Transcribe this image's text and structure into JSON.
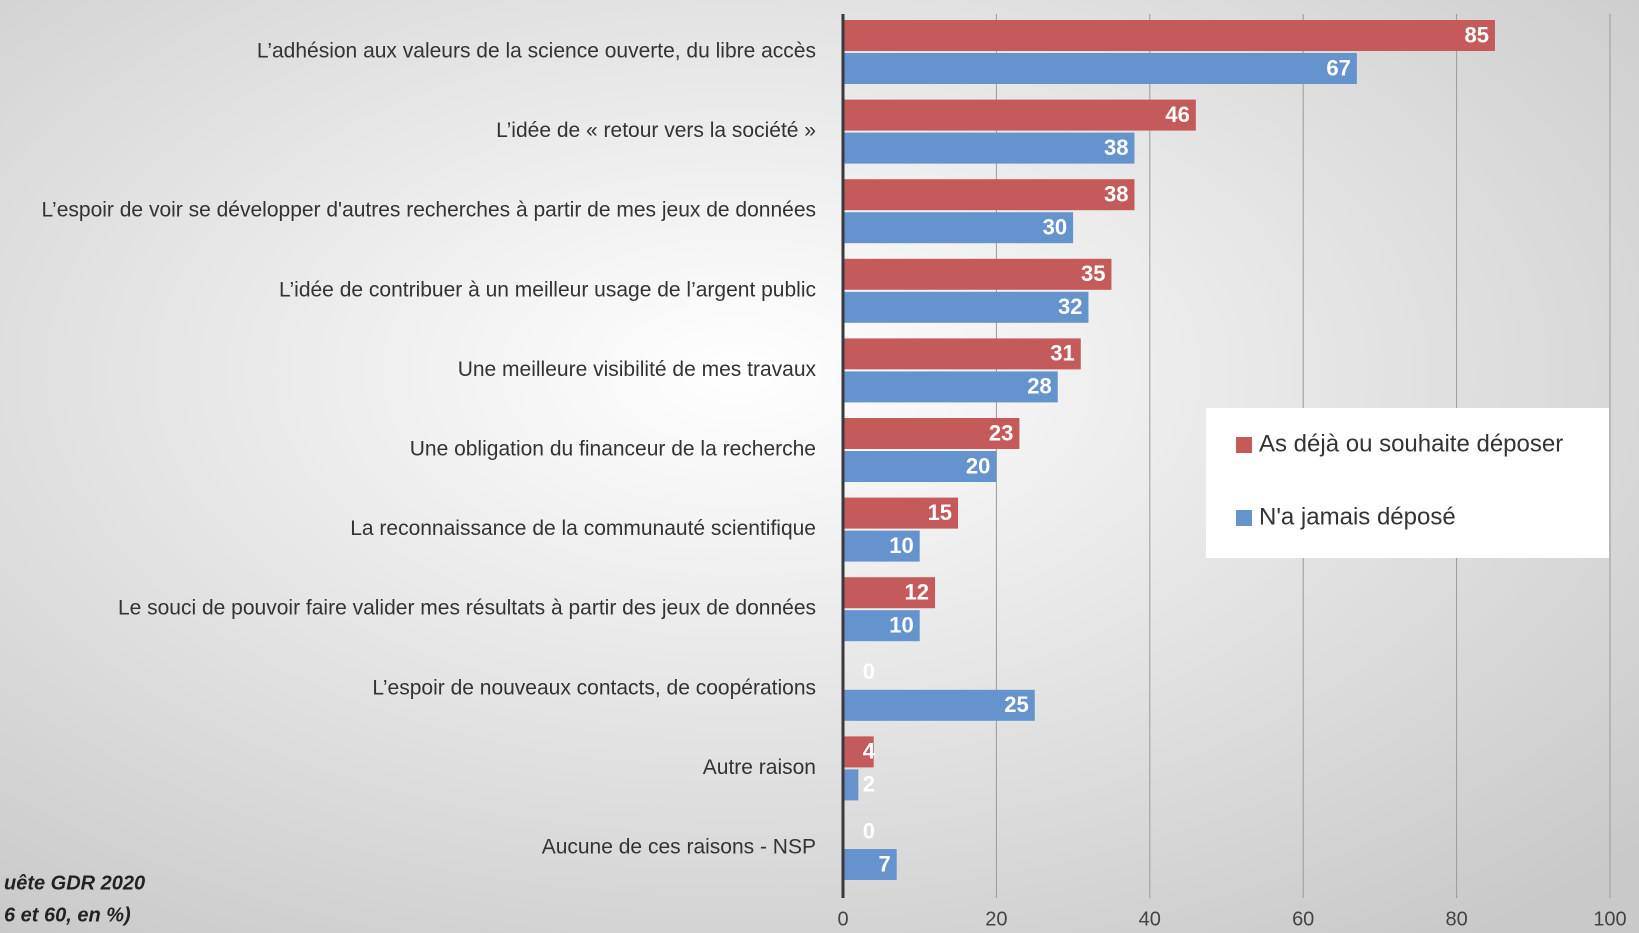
{
  "chart_data": {
    "type": "hbar",
    "categories": [
      "L’adhésion aux valeurs de la science ouverte, du libre accès",
      "L’idée de « retour vers la société »",
      "L’espoir de voir se développer d'autres recherches à partir de mes jeux de données",
      "L’idée de contribuer à un meilleur usage de l’argent public",
      "Une meilleure visibilité de mes travaux",
      "Une obligation du financeur de la recherche",
      "La reconnaissance de la communauté scientifique",
      "Le souci de pouvoir faire valider mes résultats à partir des jeux de données",
      "L’espoir de nouveaux contacts, de coopérations",
      "Autre raison",
      "Aucune de ces raisons - NSP"
    ],
    "series": [
      {
        "name": "As déjà ou souhaite déposer",
        "color": "#c55a5a",
        "values": [
          85,
          46,
          38,
          35,
          31,
          23,
          15,
          12,
          0,
          4,
          0
        ]
      },
      {
        "name": "N'a jamais déposé",
        "color": "#6593cd",
        "values": [
          67,
          38,
          30,
          32,
          28,
          20,
          10,
          10,
          25,
          2,
          7
        ]
      }
    ],
    "xlim": [
      0,
      100
    ],
    "xticks": [
      0,
      20,
      40,
      60,
      80,
      100
    ],
    "grid": true,
    "legend": "right",
    "notes": [
      "uête GDR 2020",
      "6 et 60, en %)"
    ]
  }
}
